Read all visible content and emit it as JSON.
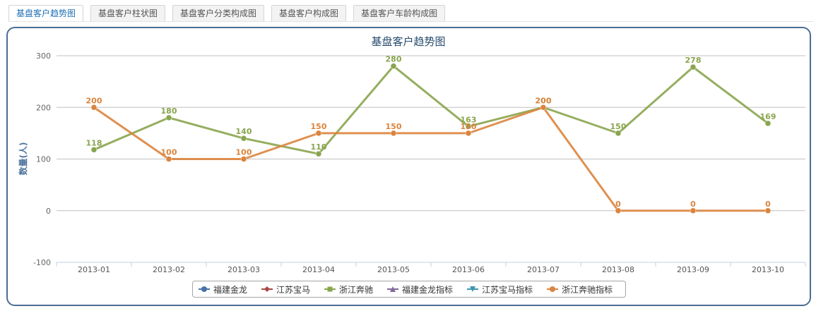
{
  "tabs": [
    {
      "label": "基盘客户趋势图",
      "active": true
    },
    {
      "label": "基盘客户柱状图",
      "active": false
    },
    {
      "label": "基盘客户分类构成图",
      "active": false
    },
    {
      "label": "基盘客户构成图",
      "active": false
    },
    {
      "label": "基盘客户车龄构成图",
      "active": false
    }
  ],
  "chart_data": {
    "type": "line",
    "title": "基盘客户趋势图",
    "ylabel": "数量(人)",
    "xlabel": "",
    "ylim": [
      -100,
      300
    ],
    "yticks": [
      -100,
      0,
      100,
      200,
      300
    ],
    "grid": true,
    "legend_position": "bottom",
    "categories": [
      "2013-01",
      "2013-02",
      "2013-03",
      "2013-04",
      "2013-05",
      "2013-06",
      "2013-07",
      "2013-08",
      "2013-09",
      "2013-10"
    ],
    "series": [
      {
        "name": "福建金龙",
        "color": "#4572a7",
        "marker": "circle",
        "values": [
          null,
          null,
          null,
          null,
          null,
          null,
          null,
          null,
          null,
          null
        ]
      },
      {
        "name": "江苏宝马",
        "color": "#aa4643",
        "marker": "diamond",
        "values": [
          null,
          null,
          null,
          null,
          null,
          null,
          null,
          null,
          null,
          null
        ]
      },
      {
        "name": "浙江奔驰",
        "color": "#89a54e",
        "marker": "square",
        "values": [
          118,
          180,
          140,
          110,
          280,
          163,
          200,
          150,
          278,
          169
        ],
        "labels": true
      },
      {
        "name": "福建金龙指标",
        "color": "#80699b",
        "marker": "triangle",
        "values": [
          null,
          null,
          null,
          null,
          null,
          null,
          null,
          null,
          null,
          null
        ]
      },
      {
        "name": "江苏宝马指标",
        "color": "#3d96ae",
        "marker": "triangle-down",
        "values": [
          null,
          null,
          null,
          null,
          null,
          null,
          null,
          null,
          null,
          null
        ]
      },
      {
        "name": "浙江奔驰指标",
        "color": "#db843d",
        "marker": "circle",
        "values": [
          200,
          100,
          100,
          150,
          150,
          150,
          200,
          0,
          0,
          0
        ],
        "labels": true
      }
    ]
  }
}
